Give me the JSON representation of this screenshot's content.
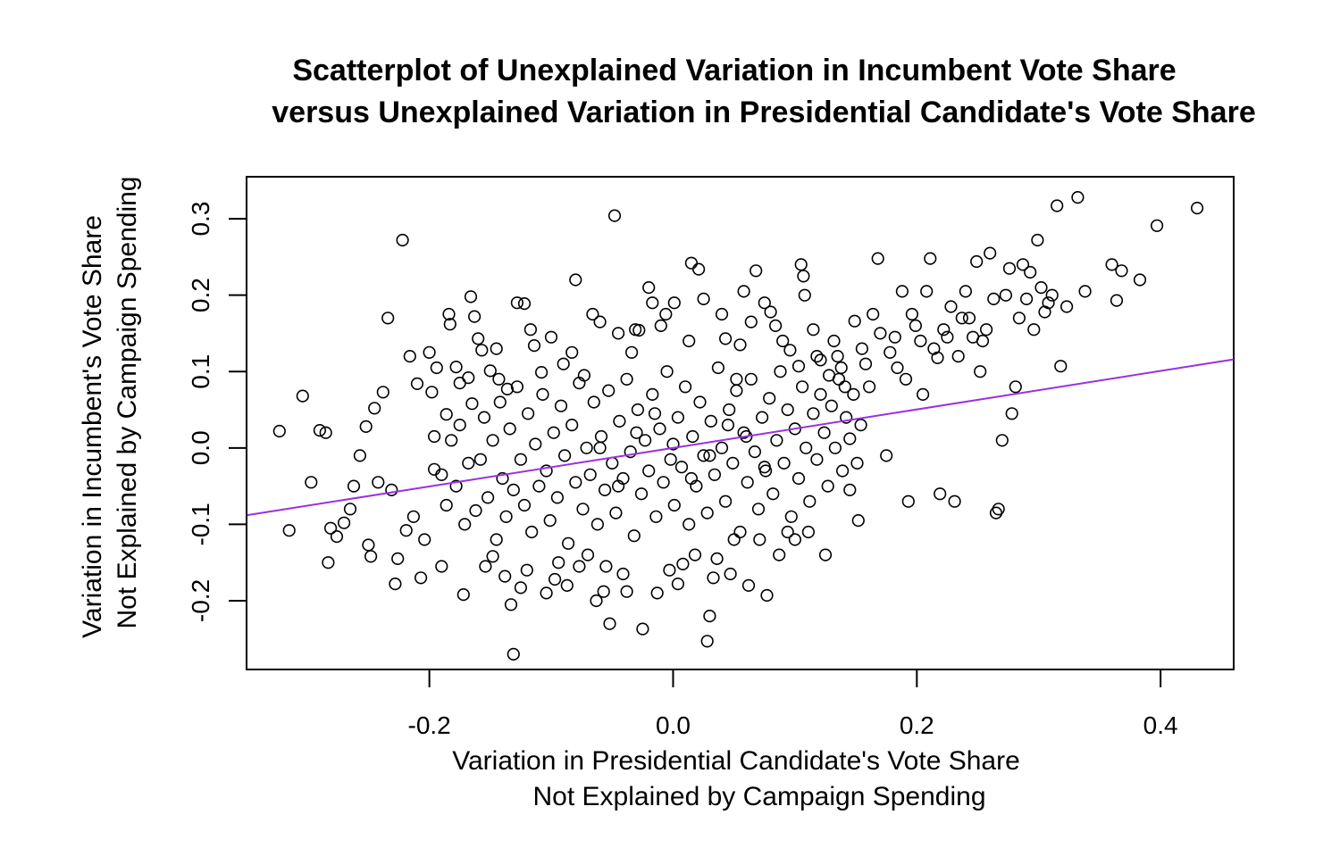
{
  "chart_data": {
    "type": "scatter",
    "title": [
      "Scatterplot of Unexplained Variation in Incumbent Vote Share",
      "versus Unexplained Variation in Presidential Candidate's Vote Share"
    ],
    "xlabel": [
      "Variation in Presidential Candidate's Vote Share",
      "Not Explained by Campaign Spending"
    ],
    "ylabel": [
      "Variation in Incumbent's Vote Share",
      "Not Explained by Campaign Spending"
    ],
    "xlim": [
      -0.35,
      0.46
    ],
    "ylim": [
      -0.29,
      0.355
    ],
    "xticks": [
      -0.2,
      0.0,
      0.2,
      0.4
    ],
    "xtick_labels": [
      "-0.2",
      "0.0",
      "0.2",
      "0.4"
    ],
    "yticks": [
      -0.2,
      -0.1,
      0.0,
      0.1,
      0.2,
      0.3
    ],
    "ytick_labels": [
      "-0.2",
      "-0.1",
      "0.0",
      "0.1",
      "0.2",
      "0.3"
    ],
    "grid": false,
    "point_style": "open-circle",
    "point_color": "#000000",
    "fit_line": {
      "intercept": 0.0,
      "slope": 0.252,
      "color": "#9b30e0"
    },
    "points": [
      [
        -0.323,
        0.022
      ],
      [
        -0.315,
        -0.108
      ],
      [
        -0.304,
        0.068
      ],
      [
        -0.297,
        -0.045
      ],
      [
        -0.29,
        0.023
      ],
      [
        -0.285,
        0.02
      ],
      [
        -0.283,
        -0.15
      ],
      [
        -0.281,
        -0.105
      ],
      [
        -0.276,
        -0.116
      ],
      [
        -0.27,
        -0.098
      ],
      [
        -0.265,
        -0.08
      ],
      [
        -0.262,
        -0.05
      ],
      [
        -0.257,
        -0.01
      ],
      [
        -0.252,
        0.028
      ],
      [
        -0.25,
        -0.127
      ],
      [
        -0.248,
        -0.142
      ],
      [
        -0.245,
        0.052
      ],
      [
        -0.242,
        -0.045
      ],
      [
        -0.238,
        0.073
      ],
      [
        -0.234,
        0.17
      ],
      [
        -0.231,
        -0.055
      ],
      [
        -0.228,
        -0.178
      ],
      [
        -0.226,
        -0.145
      ],
      [
        -0.222,
        0.272
      ],
      [
        -0.219,
        -0.108
      ],
      [
        -0.216,
        0.12
      ],
      [
        -0.213,
        -0.09
      ],
      [
        -0.21,
        0.084
      ],
      [
        -0.207,
        -0.17
      ],
      [
        -0.204,
        -0.12
      ],
      [
        -0.2,
        0.125
      ],
      [
        -0.198,
        0.073
      ],
      [
        -0.196,
        -0.028
      ],
      [
        -0.194,
        0.105
      ],
      [
        -0.19,
        -0.155
      ],
      [
        -0.186,
        0.044
      ],
      [
        -0.184,
        0.175
      ],
      [
        -0.183,
        0.162
      ],
      [
        -0.178,
        0.106
      ],
      [
        -0.175,
        0.085
      ],
      [
        -0.172,
        -0.192
      ],
      [
        -0.168,
        0.092
      ],
      [
        -0.166,
        0.198
      ],
      [
        -0.163,
        0.172
      ],
      [
        -0.16,
        0.143
      ],
      [
        -0.157,
        0.128
      ],
      [
        -0.154,
        -0.155
      ],
      [
        -0.15,
        0.101
      ],
      [
        -0.148,
        -0.142
      ],
      [
        -0.145,
        0.13
      ],
      [
        -0.143,
        0.09
      ],
      [
        -0.138,
        -0.168
      ],
      [
        -0.136,
        0.077
      ],
      [
        -0.133,
        -0.205
      ],
      [
        -0.131,
        -0.27
      ],
      [
        -0.128,
        0.19
      ],
      [
        -0.125,
        -0.183
      ],
      [
        -0.122,
        0.189
      ],
      [
        -0.12,
        -0.16
      ],
      [
        -0.117,
        0.155
      ],
      [
        -0.114,
        0.134
      ],
      [
        -0.108,
        0.099
      ],
      [
        -0.104,
        -0.19
      ],
      [
        -0.1,
        0.145
      ],
      [
        -0.097,
        -0.172
      ],
      [
        -0.094,
        -0.15
      ],
      [
        -0.09,
        0.11
      ],
      [
        -0.087,
        -0.18
      ],
      [
        -0.083,
        0.125
      ],
      [
        -0.08,
        0.22
      ],
      [
        -0.077,
        -0.155
      ],
      [
        -0.073,
        0.095
      ],
      [
        -0.07,
        -0.14
      ],
      [
        -0.066,
        0.175
      ],
      [
        -0.063,
        -0.2
      ],
      [
        -0.06,
        0.165
      ],
      [
        -0.057,
        -0.188
      ],
      [
        -0.055,
        -0.155
      ],
      [
        -0.052,
        -0.23
      ],
      [
        -0.048,
        0.304
      ],
      [
        -0.045,
        0.15
      ],
      [
        -0.041,
        -0.165
      ],
      [
        -0.038,
        -0.188
      ],
      [
        -0.034,
        0.125
      ],
      [
        -0.031,
        0.155
      ],
      [
        -0.028,
        0.154
      ],
      [
        -0.025,
        -0.237
      ],
      [
        -0.02,
        0.21
      ],
      [
        -0.017,
        0.19
      ],
      [
        -0.013,
        -0.19
      ],
      [
        -0.01,
        0.16
      ],
      [
        -0.006,
        0.175
      ],
      [
        -0.003,
        -0.16
      ],
      [
        0.001,
        0.19
      ],
      [
        0.004,
        -0.178
      ],
      [
        0.008,
        -0.152
      ],
      [
        0.013,
        0.14
      ],
      [
        0.015,
        0.242
      ],
      [
        0.018,
        -0.14
      ],
      [
        0.021,
        0.234
      ],
      [
        0.025,
        0.195
      ],
      [
        0.028,
        -0.253
      ],
      [
        0.03,
        -0.22
      ],
      [
        0.033,
        -0.17
      ],
      [
        0.036,
        -0.145
      ],
      [
        0.04,
        0.175
      ],
      [
        0.043,
        0.143
      ],
      [
        0.047,
        -0.165
      ],
      [
        0.05,
        -0.12
      ],
      [
        0.052,
        0.09
      ],
      [
        0.055,
        0.135
      ],
      [
        0.058,
        0.205
      ],
      [
        0.062,
        -0.18
      ],
      [
        0.064,
        0.165
      ],
      [
        0.068,
        0.232
      ],
      [
        0.071,
        -0.12
      ],
      [
        0.075,
        0.19
      ],
      [
        0.077,
        -0.193
      ],
      [
        0.08,
        0.178
      ],
      [
        0.084,
        0.16
      ],
      [
        0.087,
        -0.14
      ],
      [
        0.09,
        0.14
      ],
      [
        0.094,
        -0.11
      ],
      [
        0.096,
        0.128
      ],
      [
        0.1,
        -0.12
      ],
      [
        0.103,
        0.107
      ],
      [
        0.105,
        0.24
      ],
      [
        0.107,
        0.225
      ],
      [
        0.108,
        0.2
      ],
      [
        0.111,
        -0.11
      ],
      [
        0.115,
        0.155
      ],
      [
        0.118,
        0.12
      ],
      [
        0.121,
        0.115
      ],
      [
        0.125,
        -0.14
      ],
      [
        0.128,
        0.095
      ],
      [
        0.132,
        0.14
      ],
      [
        0.135,
        0.12
      ],
      [
        0.138,
        0.105
      ],
      [
        0.141,
        0.08
      ],
      [
        0.145,
        -0.055
      ],
      [
        0.149,
        0.166
      ],
      [
        0.152,
        -0.095
      ],
      [
        0.155,
        0.13
      ],
      [
        0.158,
        0.11
      ],
      [
        0.161,
        0.08
      ],
      [
        0.164,
        0.175
      ],
      [
        0.168,
        0.248
      ],
      [
        0.17,
        0.15
      ],
      [
        0.175,
        -0.01
      ],
      [
        0.178,
        0.125
      ],
      [
        0.182,
        0.145
      ],
      [
        0.184,
        0.105
      ],
      [
        0.188,
        0.205
      ],
      [
        0.191,
        0.09
      ],
      [
        0.193,
        -0.07
      ],
      [
        0.196,
        0.175
      ],
      [
        0.199,
        0.16
      ],
      [
        0.203,
        0.14
      ],
      [
        0.205,
        0.07
      ],
      [
        0.208,
        0.205
      ],
      [
        0.211,
        0.248
      ],
      [
        0.214,
        0.13
      ],
      [
        0.217,
        0.118
      ],
      [
        0.219,
        -0.06
      ],
      [
        0.222,
        0.155
      ],
      [
        0.225,
        0.145
      ],
      [
        0.228,
        0.185
      ],
      [
        0.231,
        -0.07
      ],
      [
        0.234,
        0.12
      ],
      [
        0.237,
        0.17
      ],
      [
        0.24,
        0.205
      ],
      [
        0.243,
        0.17
      ],
      [
        0.246,
        0.145
      ],
      [
        0.249,
        0.244
      ],
      [
        0.252,
        0.1
      ],
      [
        0.254,
        0.14
      ],
      [
        0.257,
        0.155
      ],
      [
        0.26,
        0.255
      ],
      [
        0.263,
        0.195
      ],
      [
        0.265,
        -0.085
      ],
      [
        0.267,
        -0.08
      ],
      [
        0.27,
        0.01
      ],
      [
        0.273,
        0.2
      ],
      [
        0.276,
        0.235
      ],
      [
        0.278,
        0.045
      ],
      [
        0.281,
        0.08
      ],
      [
        0.284,
        0.17
      ],
      [
        0.287,
        0.24
      ],
      [
        0.29,
        0.195
      ],
      [
        0.293,
        0.23
      ],
      [
        0.296,
        0.155
      ],
      [
        0.299,
        0.272
      ],
      [
        0.302,
        0.21
      ],
      [
        0.305,
        0.178
      ],
      [
        0.308,
        0.19
      ],
      [
        0.311,
        0.2
      ],
      [
        0.315,
        0.317
      ],
      [
        0.318,
        0.107
      ],
      [
        0.323,
        0.185
      ],
      [
        0.332,
        0.328
      ],
      [
        0.338,
        0.205
      ],
      [
        0.36,
        0.24
      ],
      [
        0.364,
        0.193
      ],
      [
        0.368,
        0.232
      ],
      [
        0.383,
        0.22
      ],
      [
        0.397,
        0.291
      ],
      [
        0.43,
        0.314
      ],
      [
        -0.196,
        0.015
      ],
      [
        -0.19,
        -0.035
      ],
      [
        -0.186,
        -0.075
      ],
      [
        -0.182,
        0.01
      ],
      [
        -0.178,
        -0.05
      ],
      [
        -0.175,
        0.03
      ],
      [
        -0.171,
        -0.1
      ],
      [
        -0.168,
        -0.02
      ],
      [
        -0.165,
        0.058
      ],
      [
        -0.162,
        -0.082
      ],
      [
        -0.158,
        -0.015
      ],
      [
        -0.155,
        0.04
      ],
      [
        -0.152,
        -0.065
      ],
      [
        -0.148,
        0.01
      ],
      [
        -0.145,
        -0.12
      ],
      [
        -0.142,
        0.06
      ],
      [
        -0.14,
        -0.04
      ],
      [
        -0.137,
        -0.09
      ],
      [
        -0.134,
        0.025
      ],
      [
        -0.131,
        -0.055
      ],
      [
        -0.128,
        0.08
      ],
      [
        -0.125,
        -0.015
      ],
      [
        -0.122,
        -0.075
      ],
      [
        -0.119,
        0.045
      ],
      [
        -0.116,
        -0.11
      ],
      [
        -0.113,
        0.005
      ],
      [
        -0.11,
        -0.05
      ],
      [
        -0.107,
        0.07
      ],
      [
        -0.104,
        -0.03
      ],
      [
        -0.101,
        -0.095
      ],
      [
        -0.098,
        0.02
      ],
      [
        -0.095,
        -0.065
      ],
      [
        -0.092,
        0.055
      ],
      [
        -0.089,
        -0.01
      ],
      [
        -0.086,
        -0.125
      ],
      [
        -0.083,
        0.03
      ],
      [
        -0.08,
        -0.045
      ],
      [
        -0.077,
        0.085
      ],
      [
        -0.074,
        -0.08
      ],
      [
        -0.071,
        0.0
      ],
      [
        -0.068,
        -0.035
      ],
      [
        -0.065,
        0.06
      ],
      [
        -0.062,
        -0.1
      ],
      [
        -0.059,
        0.015
      ],
      [
        -0.056,
        -0.055
      ],
      [
        -0.053,
        0.075
      ],
      [
        -0.05,
        -0.02
      ],
      [
        -0.047,
        -0.085
      ],
      [
        -0.044,
        0.035
      ],
      [
        -0.041,
        -0.04
      ],
      [
        -0.038,
        0.09
      ],
      [
        -0.035,
        -0.005
      ],
      [
        -0.032,
        -0.115
      ],
      [
        -0.029,
        0.05
      ],
      [
        -0.026,
        -0.06
      ],
      [
        -0.023,
        0.01
      ],
      [
        -0.02,
        -0.03
      ],
      [
        -0.017,
        0.07
      ],
      [
        -0.014,
        -0.09
      ],
      [
        -0.011,
        0.025
      ],
      [
        -0.008,
        -0.045
      ],
      [
        -0.005,
        0.1
      ],
      [
        -0.002,
        -0.015
      ],
      [
        0.001,
        -0.075
      ],
      [
        0.004,
        0.04
      ],
      [
        0.007,
        -0.025
      ],
      [
        0.01,
        0.08
      ],
      [
        0.013,
        -0.1
      ],
      [
        0.016,
        0.015
      ],
      [
        0.019,
        -0.05
      ],
      [
        0.022,
        0.06
      ],
      [
        0.025,
        -0.01
      ],
      [
        0.028,
        -0.085
      ],
      [
        0.031,
        0.035
      ],
      [
        0.034,
        -0.035
      ],
      [
        0.037,
        0.105
      ],
      [
        0.04,
        0.0
      ],
      [
        0.043,
        -0.07
      ],
      [
        0.046,
        0.05
      ],
      [
        0.049,
        -0.02
      ],
      [
        0.052,
        0.075
      ],
      [
        0.055,
        -0.11
      ],
      [
        0.058,
        0.02
      ],
      [
        0.061,
        -0.045
      ],
      [
        0.064,
        0.09
      ],
      [
        0.067,
        -0.005
      ],
      [
        0.07,
        -0.08
      ],
      [
        0.073,
        0.04
      ],
      [
        0.076,
        -0.03
      ],
      [
        0.079,
        0.065
      ],
      [
        0.082,
        -0.06
      ],
      [
        0.085,
        0.01
      ],
      [
        0.088,
        0.1
      ],
      [
        0.091,
        -0.02
      ],
      [
        0.094,
        0.05
      ],
      [
        0.097,
        -0.09
      ],
      [
        0.1,
        0.025
      ],
      [
        0.103,
        -0.04
      ],
      [
        0.106,
        0.08
      ],
      [
        0.109,
        0.0
      ],
      [
        0.112,
        -0.07
      ],
      [
        0.115,
        0.045
      ],
      [
        0.118,
        -0.015
      ],
      [
        0.121,
        0.07
      ],
      [
        0.124,
        0.02
      ],
      [
        0.127,
        -0.05
      ],
      [
        0.13,
        0.055
      ],
      [
        0.133,
        0.0
      ],
      [
        0.136,
        0.09
      ],
      [
        0.139,
        -0.03
      ],
      [
        0.142,
        0.04
      ],
      [
        0.145,
        0.012
      ],
      [
        0.148,
        0.07
      ],
      [
        0.151,
        -0.02
      ],
      [
        0.154,
        0.03
      ],
      [
        -0.06,
        0.0
      ],
      [
        -0.03,
        0.02
      ],
      [
        0.0,
        0.005
      ],
      [
        0.03,
        -0.01
      ],
      [
        0.06,
        0.015
      ],
      [
        -0.045,
        -0.05
      ],
      [
        -0.015,
        0.045
      ],
      [
        0.015,
        -0.04
      ],
      [
        0.045,
        0.03
      ],
      [
        0.075,
        -0.025
      ]
    ]
  }
}
